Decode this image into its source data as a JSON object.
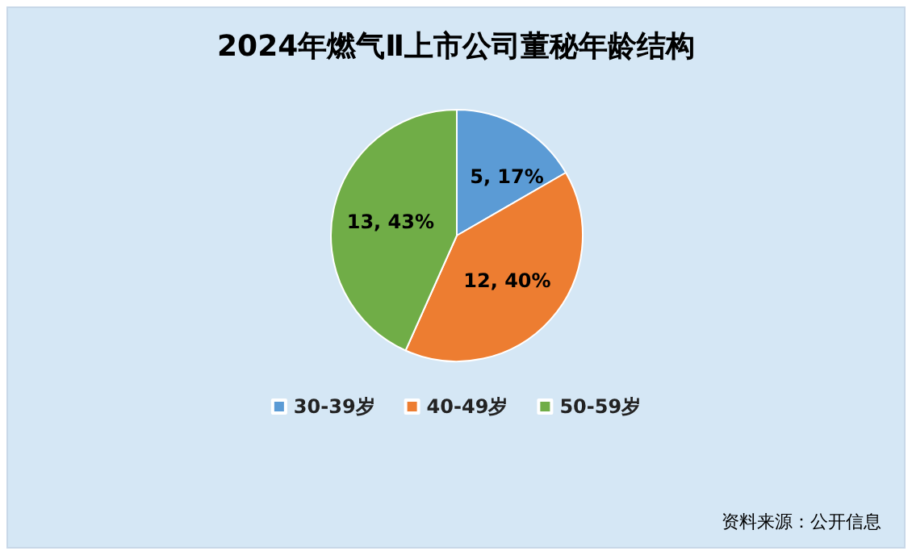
{
  "chart_data": {
    "type": "pie",
    "title": "2024年燃气Ⅱ上市公司董秘年龄结构",
    "categories": [
      "30-39岁",
      "40-49岁",
      "50-59岁"
    ],
    "values": [
      5,
      12,
      13
    ],
    "colors": [
      "#5b9bd5",
      "#ed7d31",
      "#70ad47"
    ],
    "value_labels": [
      "5, 17%",
      "12, 40%",
      "13, 43%"
    ],
    "legend": "bottom",
    "annotations": [
      "资料来源：公开信息"
    ]
  }
}
